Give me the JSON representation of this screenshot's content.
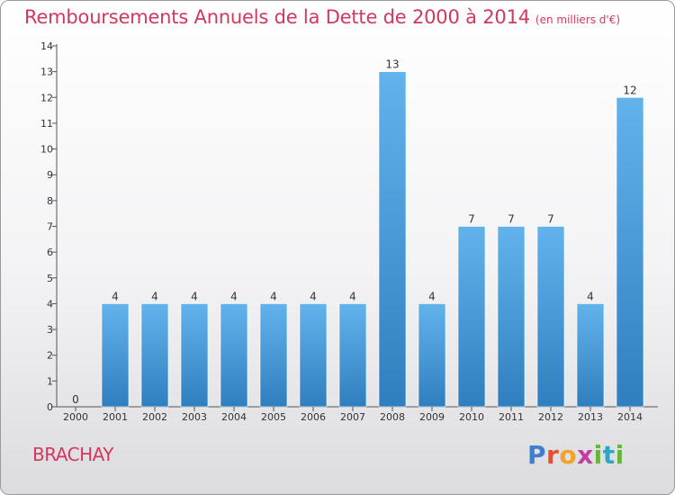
{
  "title": "Remboursements Annuels de la Dette de 2000 à 2014",
  "unit": "(en milliers d'€)",
  "commune": "BRACHAY",
  "logo": {
    "p": "P",
    "r": "r",
    "o": "o",
    "x": "x",
    "i1": "i",
    "t": "t",
    "i2": "i"
  },
  "colors": {
    "bar_light": "#62b3ec",
    "bar_dark": "#2f7fc0",
    "title": "#d2385c"
  },
  "chart_data": {
    "type": "bar",
    "categories": [
      "2000",
      "2001",
      "2002",
      "2003",
      "2004",
      "2005",
      "2006",
      "2007",
      "2008",
      "2009",
      "2010",
      "2011",
      "2012",
      "2013",
      "2014"
    ],
    "values": [
      0,
      4,
      4,
      4,
      4,
      4,
      4,
      4,
      13,
      4,
      7,
      7,
      7,
      4,
      12
    ],
    "title": "Remboursements Annuels de la Dette de 2000 à 2014",
    "xlabel": "",
    "ylabel": "",
    "ylim": [
      0,
      14
    ],
    "yticks": [
      0,
      1,
      2,
      3,
      4,
      5,
      6,
      7,
      8,
      9,
      10,
      11,
      12,
      13,
      14
    ],
    "grid": false,
    "legend": "none"
  }
}
